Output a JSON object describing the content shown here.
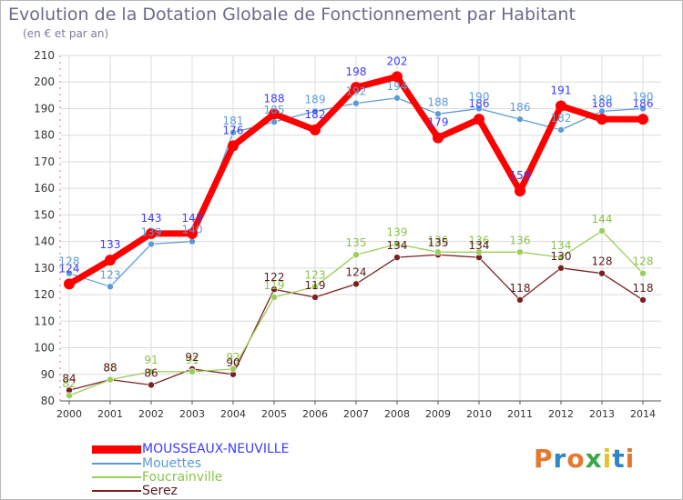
{
  "title": "Evolution de la Dotation Globale de Fonctionnement par Habitant",
  "subtitle": "(en € et par an)",
  "logo": {
    "text": "Proxiti",
    "letters": [
      "P",
      "r",
      "o",
      "x",
      "i",
      "t",
      "i"
    ],
    "colors": [
      "#e8772e",
      "#2e86c9",
      "#e8772e",
      "#3aa84a",
      "#e8c12e",
      "#2e86c9",
      "#e8772e"
    ]
  },
  "chart_data": {
    "type": "line",
    "title": "Evolution de la Dotation Globale de Fonctionnement par Habitant",
    "ylabel": "(en € et par an)",
    "xlabel": "",
    "x": [
      "2000",
      "2001",
      "2002",
      "2003",
      "2004",
      "2005",
      "2006",
      "2007",
      "2008",
      "2009",
      "2010",
      "2011",
      "2012",
      "2013",
      "2014"
    ],
    "ylim": [
      80,
      210
    ],
    "yticks": [
      80,
      90,
      100,
      110,
      120,
      130,
      140,
      150,
      160,
      170,
      180,
      190,
      200,
      210
    ],
    "grid": true,
    "legend_position": "bottom-left",
    "series": [
      {
        "name": "MOUSSEAUX-NEUVILLE",
        "color": "#ff0000",
        "label_color": "#3b3bff",
        "width": 7,
        "label_offset": -17,
        "values": [
          124,
          133,
          143,
          143,
          176,
          188,
          182,
          198,
          202,
          179,
          186,
          159,
          191,
          186,
          186
        ]
      },
      {
        "name": "Mouettes",
        "color": "#5b9bd5",
        "label_color": "#5b9bd5",
        "width": 1.3,
        "label_offset": -13,
        "values": [
          128,
          123,
          139,
          140,
          181,
          185,
          189,
          192,
          194,
          188,
          190,
          186,
          182,
          189,
          190
        ]
      },
      {
        "name": "Foucrainville",
        "color": "#9acd5a",
        "label_color": "#8bc34a",
        "width": 1.3,
        "label_offset": -13,
        "values": [
          82,
          88,
          91,
          91,
          92,
          119,
          123,
          135,
          139,
          136,
          136,
          136,
          134,
          144,
          128
        ]
      },
      {
        "name": "Serez",
        "color": "#7b2020",
        "label_color": "#5a1a1a",
        "width": 1.3,
        "label_offset": -13,
        "values": [
          84,
          88,
          86,
          92,
          90,
          122,
          119,
          124,
          134,
          135,
          134,
          118,
          130,
          128,
          118
        ]
      }
    ]
  }
}
